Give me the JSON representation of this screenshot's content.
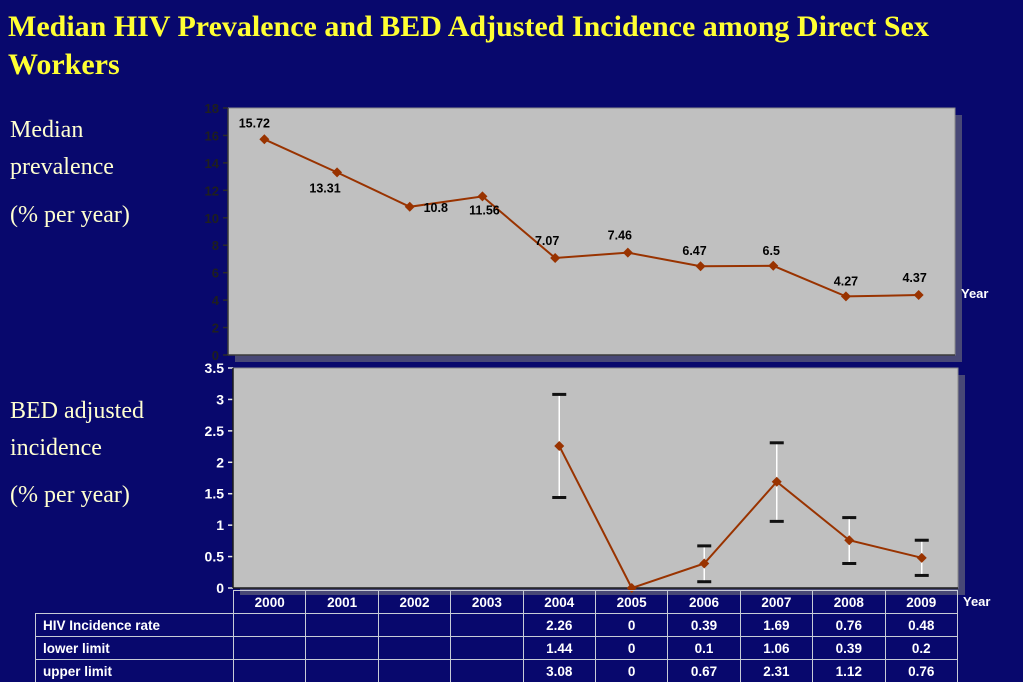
{
  "slide": {
    "title": "Median HIV Prevalence and BED Adjusted Incidence among Direct Sex Workers",
    "background_color": "#08086d",
    "title_color": "#ffff33"
  },
  "side_labels": {
    "prevalence": {
      "line1": "Median prevalence",
      "line2": "(% per year)"
    },
    "incidence": {
      "line1": "BED adjusted incidence",
      "line2": "(% per year)"
    }
  },
  "axis_labels": {
    "top_year": "Year",
    "bottom_year": "Year"
  },
  "chart_data": [
    {
      "type": "line",
      "title": "Median prevalence (% per year)",
      "x": [
        "2000",
        "2001",
        "2002",
        "2003",
        "2004",
        "2005",
        "2006",
        "2007",
        "2008",
        "2009"
      ],
      "values": [
        15.72,
        13.31,
        10.8,
        11.56,
        7.07,
        7.46,
        6.47,
        6.5,
        4.27,
        4.37
      ],
      "data_labels": [
        "15.72",
        "13.31",
        "10.8",
        "11.56",
        "7.07",
        "7.46",
        "6.47",
        "6.5",
        "4.27",
        "4.37"
      ],
      "xlabel": "Year",
      "ylabel": "Median prevalence (% per year)",
      "ylim": [
        0,
        18
      ],
      "yticks": [
        0,
        2,
        4,
        6,
        8,
        10,
        12,
        14,
        16,
        18
      ],
      "grid": false,
      "legend": "none",
      "line_color": "#993300",
      "plot_bg": "#c0c0c0"
    },
    {
      "type": "line",
      "title": "BED adjusted incidence (% per year)",
      "x": [
        "2000",
        "2001",
        "2002",
        "2003",
        "2004",
        "2005",
        "2006",
        "2007",
        "2008",
        "2009"
      ],
      "series": [
        {
          "name": "HIV Incidence rate",
          "values": [
            null,
            null,
            null,
            null,
            2.26,
            0,
            0.39,
            1.69,
            0.76,
            0.48
          ]
        },
        {
          "name": "lower limit",
          "values": [
            null,
            null,
            null,
            null,
            1.44,
            0,
            0.1,
            1.06,
            0.39,
            0.2
          ]
        },
        {
          "name": "upper limit",
          "values": [
            null,
            null,
            null,
            null,
            3.08,
            0,
            0.67,
            2.31,
            1.12,
            0.76
          ]
        }
      ],
      "error_bars": true,
      "xlabel": "Year",
      "ylabel": "BED adjusted incidence (% per year)",
      "ylim": [
        0,
        3.5
      ],
      "yticks": [
        0,
        0.5,
        1,
        1.5,
        2,
        2.5,
        3,
        3.5
      ],
      "grid": false,
      "legend": "none",
      "line_color": "#993300",
      "plot_bg": "#c0c0c0"
    }
  ],
  "table": {
    "header": [
      "2000",
      "2001",
      "2002",
      "2003",
      "2004",
      "2005",
      "2006",
      "2007",
      "2008",
      "2009"
    ],
    "rows": [
      {
        "label": "HIV Incidence rate",
        "values": [
          "",
          "",
          "",
          "",
          "2.26",
          "0",
          "0.39",
          "1.69",
          "0.76",
          "0.48"
        ]
      },
      {
        "label": "lower limit",
        "values": [
          "",
          "",
          "",
          "",
          "1.44",
          "0",
          "0.1",
          "1.06",
          "0.39",
          "0.2"
        ]
      },
      {
        "label": "upper limit",
        "values": [
          "",
          "",
          "",
          "",
          "3.08",
          "0",
          "0.67",
          "2.31",
          "1.12",
          "0.76"
        ]
      }
    ]
  }
}
